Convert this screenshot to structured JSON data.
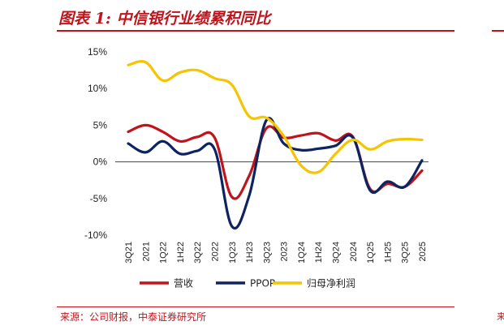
{
  "title": "图表 1:  中信银行业绩累积同比",
  "source": "来源：公司财报，中泰证券研究所",
  "right_mark": "来",
  "chart_data": {
    "type": "line",
    "title": "图表 1:  中信银行业绩累积同比",
    "categories": [
      "3Q21",
      "2021",
      "1Q22",
      "1H22",
      "3Q22",
      "2022",
      "1Q23",
      "1H23",
      "3Q23",
      "2023",
      "1Q24",
      "1H24",
      "3Q24",
      "2024",
      "1Q25",
      "1H25",
      "3Q25",
      "2025"
    ],
    "ylim": [
      -10,
      15
    ],
    "yticks": [
      15,
      10,
      5,
      0,
      -5,
      -10
    ],
    "ytick_labels": [
      "15%",
      "10%",
      "5%",
      "0%",
      "-5%",
      "-10%"
    ],
    "xlabel": "",
    "ylabel": "",
    "grid": false,
    "legend_position": "bottom",
    "series": [
      {
        "name": "营收",
        "color": "#c0141c",
        "values": [
          4.1,
          5.0,
          4.1,
          2.8,
          3.4,
          3.3,
          -4.8,
          -1.9,
          4.6,
          3.3,
          3.6,
          3.9,
          2.9,
          3.4,
          -3.7,
          -3.0,
          -3.4,
          -1.2
        ]
      },
      {
        "name": "PPOP",
        "color": "#0d2460",
        "values": [
          2.5,
          1.3,
          2.8,
          1.1,
          1.5,
          1.7,
          -8.8,
          -4.6,
          5.7,
          2.5,
          1.6,
          1.8,
          2.2,
          3.3,
          -3.9,
          -2.7,
          -3.4,
          0.2
        ]
      },
      {
        "name": "归母净利润",
        "color": "#f7c400",
        "values": [
          13.2,
          13.6,
          11.1,
          12.2,
          12.5,
          11.4,
          10.5,
          6.2,
          6.0,
          3.5,
          -0.5,
          -1.4,
          1.1,
          3.0,
          1.7,
          2.8,
          3.1,
          3.0
        ]
      }
    ]
  }
}
